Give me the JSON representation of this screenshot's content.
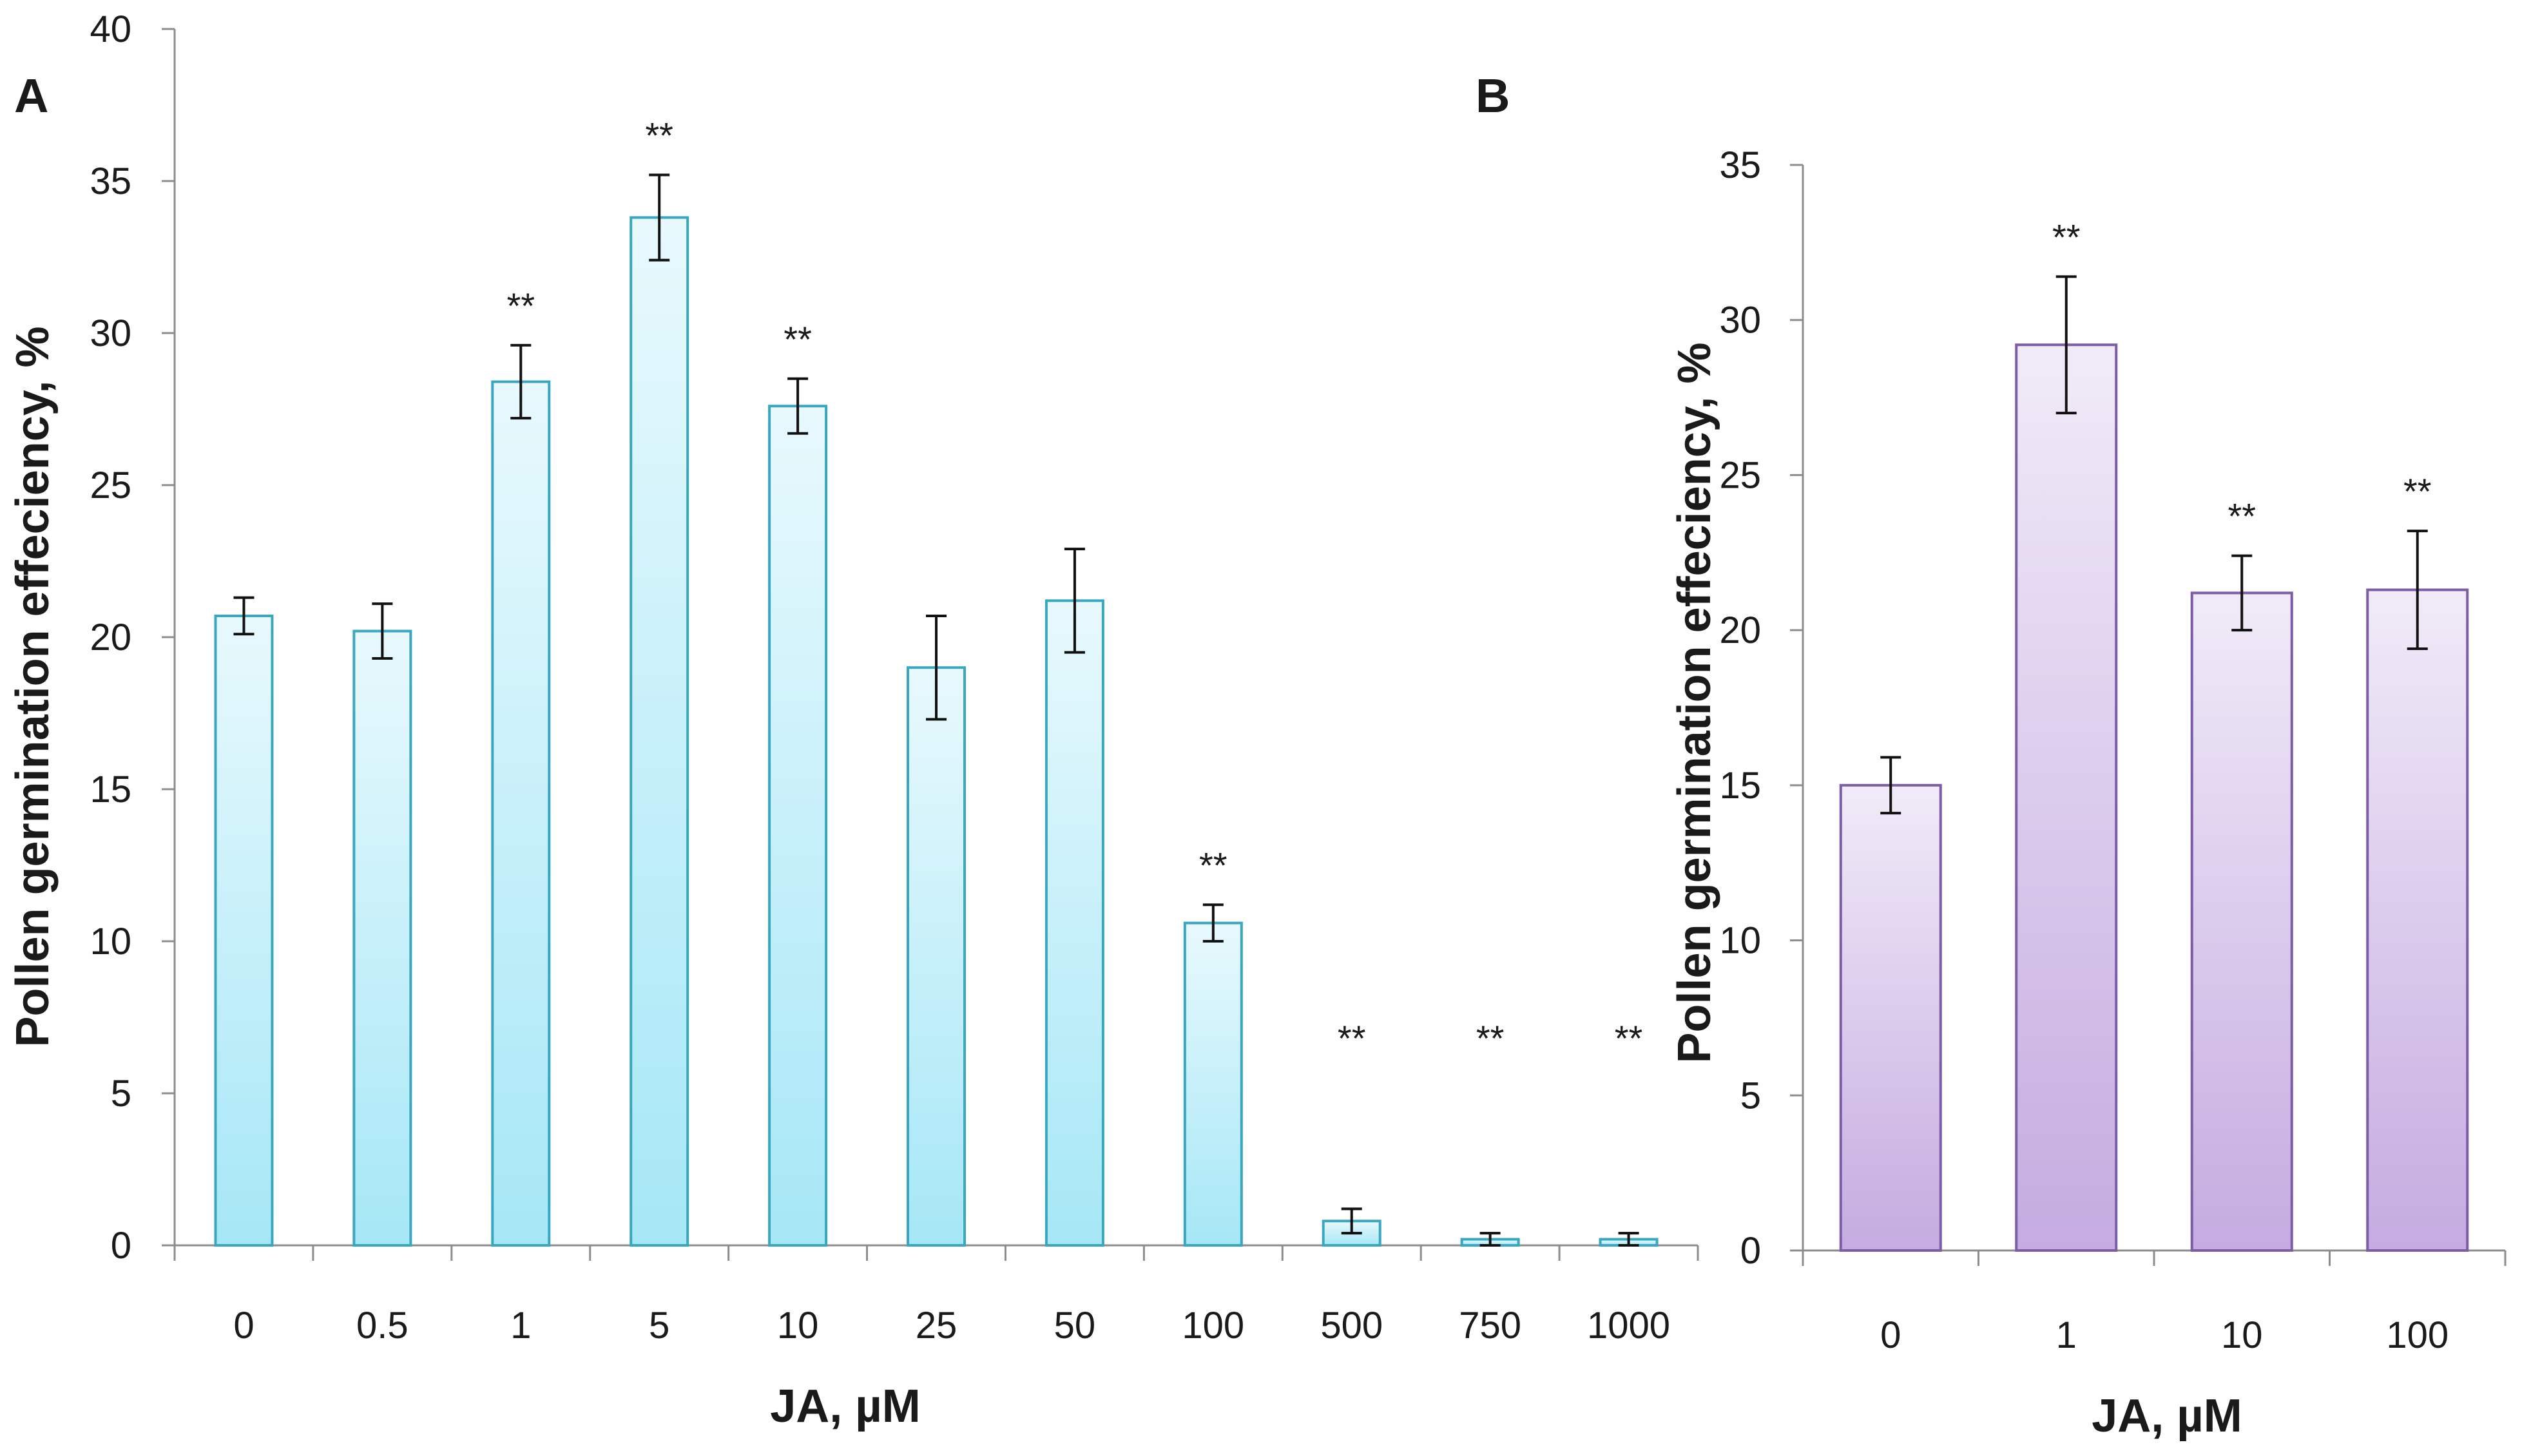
{
  "chart_data": [
    {
      "type": "bar",
      "panel": "A",
      "categories": [
        "0",
        "0.5",
        "1",
        "5",
        "10",
        "25",
        "50",
        "100",
        "500",
        "750",
        "1000"
      ],
      "values": [
        20.7,
        20.2,
        28.4,
        33.8,
        27.6,
        19.0,
        21.2,
        10.6,
        0.8,
        0.2,
        0.2
      ],
      "errors": [
        0.6,
        0.9,
        1.2,
        1.4,
        0.9,
        1.7,
        1.7,
        0.6,
        0.4,
        0.2,
        0.2
      ],
      "significance": [
        "",
        "",
        "**",
        "**",
        "**",
        "",
        "",
        "**",
        "**",
        "**",
        "**"
      ],
      "xlabel": "JA, µM",
      "ylabel": "Pollen germination effeciency, %",
      "ylim": [
        0,
        40
      ],
      "yticks": [
        "0",
        "5",
        "10",
        "15",
        "20",
        "25",
        "30",
        "35",
        "40"
      ],
      "colors": {
        "top": "#e8f9fd",
        "bottom": "#a6e7f6",
        "edge": "#3aa7c0"
      }
    },
    {
      "type": "bar",
      "panel": "B",
      "categories": [
        "0",
        "1",
        "10",
        "100"
      ],
      "values": [
        15.0,
        29.2,
        21.2,
        21.3
      ],
      "errors": [
        0.9,
        2.2,
        1.2,
        1.9
      ],
      "significance": [
        "",
        "**",
        "**",
        "**"
      ],
      "xlabel": "JA, µM",
      "ylabel": "Pollen germination effeciency, %",
      "ylim": [
        0,
        35
      ],
      "yticks": [
        "0",
        "5",
        "10",
        "15",
        "20",
        "25",
        "30",
        "35"
      ],
      "colors": {
        "top": "#f1ebf8",
        "bottom": "#c5abe0",
        "edge": "#7d5ca8"
      }
    }
  ]
}
